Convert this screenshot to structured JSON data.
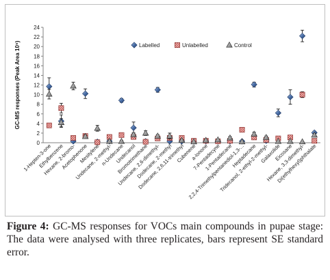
{
  "chart_data": {
    "type": "scatter",
    "title": "",
    "xlabel": "",
    "ylabel": "GC-MS responses (Peak Area 10⁵)",
    "ylim": [
      0,
      24
    ],
    "yticks": [
      0,
      2,
      4,
      6,
      8,
      10,
      12,
      14,
      16,
      18,
      20,
      22,
      24
    ],
    "grid": false,
    "legend_position": "top-right",
    "categories": [
      "1-Hepten-3-one",
      "Ethylbenzene",
      "Hexane, 2-bromo-",
      "Acetophenone",
      "Mesitylene",
      "Undecane, 2-methyl-",
      "n-Undecane",
      "Undecanol",
      "Bromotrimethane",
      "Undecane, 2,6-dimethyl-",
      "Dodecane, 2-methyl",
      "Dodecane, 2,6,11-trimethyl",
      "Cubenene",
      "a-Ionone",
      "7-Pentadecyne",
      "1-Pentadecane",
      "2,2,4-Trimethylpentanediol-1,3-...",
      "Heptadecane",
      "Tridecanol, 2-ethyl-2-methyl-",
      "Galaxolide",
      "Eicosane",
      "Hexane, 3,3-dimethyl-",
      "Di(ethylhexyl)phthalate"
    ],
    "series": [
      {
        "name": "Labelled",
        "values": [
          11.7,
          4.5,
          0.3,
          10.2,
          0.2,
          0.3,
          8.8,
          3.1,
          0.3,
          11.0,
          0.3,
          0.3,
          0.3,
          0.3,
          0.3,
          0.3,
          0.3,
          12.1,
          0.4,
          6.2,
          9.5,
          22.2,
          2.1
        ],
        "errors": [
          1.8,
          1.3,
          0.2,
          1.0,
          0.2,
          0.2,
          0.4,
          1.2,
          0.2,
          0.5,
          0.2,
          0.2,
          0.2,
          0.2,
          0.2,
          0.2,
          0.2,
          0.5,
          0.2,
          0.8,
          1.5,
          1.2,
          0.3
        ],
        "color": "#3a5f96",
        "marker": "diamond"
      },
      {
        "name": "Unlabelled",
        "values": [
          3.6,
          7.2,
          1.0,
          1.4,
          0.1,
          1.2,
          1.6,
          1.2,
          0.2,
          0.9,
          1.0,
          1.0,
          0.4,
          0.4,
          0.3,
          0.4,
          2.7,
          1.1,
          0.6,
          0.9,
          1.1,
          10.0,
          0.4
        ],
        "errors": [
          0.2,
          1.0,
          0.3,
          0.2,
          0.1,
          0.3,
          0.3,
          0.3,
          0.1,
          0.3,
          0.3,
          0.3,
          0.2,
          0.2,
          0.1,
          0.2,
          0.3,
          0.3,
          0.2,
          0.2,
          0.2,
          0.6,
          0.1
        ],
        "color": "#c0504d",
        "marker": "square"
      },
      {
        "name": "Control",
        "values": [
          10.1,
          4.2,
          11.8,
          1.3,
          3.0,
          0.3,
          0.3,
          1.7,
          2.0,
          1.4,
          1.4,
          0.5,
          0.2,
          0.5,
          0.6,
          1.0,
          0.2,
          1.8,
          1.1,
          0.3,
          0.3,
          0.2,
          1.6
        ],
        "errors": [
          1.0,
          0.8,
          0.8,
          0.3,
          0.6,
          0.2,
          0.2,
          0.4,
          0.5,
          0.3,
          0.6,
          0.2,
          0.1,
          0.2,
          0.2,
          0.3,
          0.1,
          0.4,
          0.3,
          0.1,
          0.1,
          0.1,
          0.3
        ],
        "color": "#404040",
        "marker": "triangle"
      }
    ]
  },
  "caption": {
    "label": "Figure 4:",
    "text": " GC-MS responses for VOCs main compounds in pupae stage: The data were analysed with three replicates, bars represent SE standard error."
  }
}
